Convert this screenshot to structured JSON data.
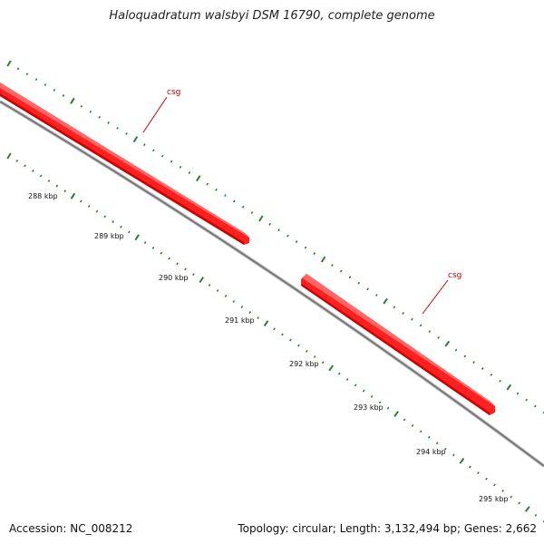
{
  "title": "Haloquadratum walsbyi DSM 16790, complete genome",
  "footer": {
    "accession": "Accession: NC_008212",
    "summary": "Topology: circular; Length: 3,132,494 bp; Genes: 2,662"
  },
  "colors": {
    "backbone": "#888888",
    "feature": "#ff1a1a",
    "tick": "#2e7d32",
    "feature_label": "#cc0000"
  },
  "features": [
    {
      "name": "csg",
      "label": "csg",
      "strand": "+"
    },
    {
      "name": "csg",
      "label": "csg",
      "strand": "+"
    }
  ],
  "scale_labels": [
    "288 kbp",
    "289 kbp",
    "290 kbp",
    "291 kbp",
    "292 kbp",
    "293 kbp",
    "294 kbp",
    "295 kbp"
  ]
}
